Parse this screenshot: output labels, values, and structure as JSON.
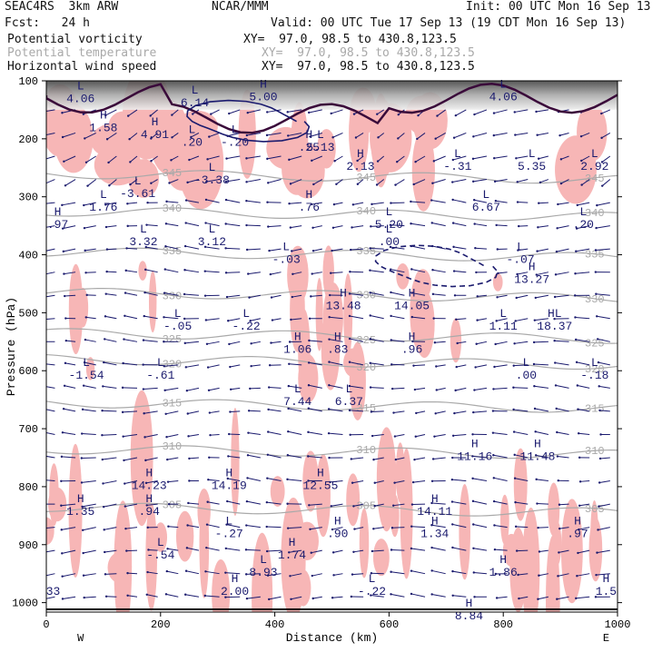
{
  "header": {
    "model": "SEAC4RS  3km ARW",
    "center": "NCAR/MMM",
    "init": "Init: 00 UTC Mon 16 Sep 13",
    "fcst": "Fcst:   24 h",
    "valid": "Valid: 00 UTC Tue 17 Sep 13 (19 CDT Mon 16 Sep 13)",
    "fields": [
      {
        "name": "Potential vorticity",
        "xy": "XY=  97.0, 98.5 to 430.8,123.5",
        "muted": false
      },
      {
        "name": "Potential temperature",
        "xy": "XY=  97.0, 98.5 to 430.8,123.5",
        "muted": true
      },
      {
        "name": "Horizontal wind speed",
        "xy": "XY=  97.0, 98.5 to 430.8,123.5",
        "muted": false
      }
    ]
  },
  "colors": {
    "pv_shade": "#f7b6b6",
    "stratosphere": "#555555",
    "theta_contour": "#a9a9a9",
    "wind_contour": "#1a1a6e",
    "vectors": "#1a1a6e",
    "tropopause": "#3a0a3a"
  },
  "chart_data": {
    "type": "cross-section",
    "xlabel": "Distance (km)",
    "ylabel": "Pressure (hPa)",
    "xlim": [
      0,
      1000
    ],
    "ylim": [
      1000,
      100
    ],
    "xticks": [
      "0",
      "200",
      "400",
      "600",
      "800",
      "1000"
    ],
    "yticks": [
      "100",
      "200",
      "300",
      "400",
      "500",
      "600",
      "700",
      "800",
      "900",
      "1000"
    ],
    "x_end_labels": {
      "left": "W",
      "right": "E"
    },
    "theta_contours": [
      {
        "label": "345",
        "p": 265
      },
      {
        "label": "340",
        "p": 330
      },
      {
        "label": "335",
        "p": 400
      },
      {
        "label": "330",
        "p": 470
      },
      {
        "label": "325",
        "p": 540
      },
      {
        "label": "320",
        "p": 585
      },
      {
        "label": "315",
        "p": 660
      },
      {
        "label": "310",
        "p": 740
      },
      {
        "label": "305",
        "p": 840
      }
    ],
    "extrema": [
      {
        "t": "L",
        "v": "4.06",
        "x": 60,
        "p": 118
      },
      {
        "t": "L",
        "v": "6.14",
        "x": 260,
        "p": 125
      },
      {
        "t": "H",
        "v": "5.00",
        "x": 380,
        "p": 115
      },
      {
        "t": "L",
        "v": "4.06",
        "x": 800,
        "p": 115
      },
      {
        "t": "H",
        "v": "1.58",
        "x": 100,
        "p": 168
      },
      {
        "t": "H",
        "v": "4.91",
        "x": 190,
        "p": 180
      },
      {
        "t": "L",
        "v": ".20",
        "x": 255,
        "p": 193
      },
      {
        "t": "L",
        "v": "-.20",
        "x": 330,
        "p": 193
      },
      {
        "t": "L",
        "v": "5.13",
        "x": 480,
        "p": 202
      },
      {
        "t": "H",
        "v": ".25",
        "x": 460,
        "p": 202
      },
      {
        "t": "H",
        "v": "2.13",
        "x": 550,
        "p": 235
      },
      {
        "t": "L",
        "v": "-.31",
        "x": 720,
        "p": 235
      },
      {
        "t": "L",
        "v": "5.35",
        "x": 850,
        "p": 235
      },
      {
        "t": "L",
        "v": "2.92",
        "x": 960,
        "p": 235
      },
      {
        "t": "L",
        "v": "-3.38",
        "x": 290,
        "p": 258
      },
      {
        "t": "L",
        "v": "-3.61",
        "x": 160,
        "p": 282
      },
      {
        "t": "H",
        "v": ".76",
        "x": 460,
        "p": 305
      },
      {
        "t": "L",
        "v": "1.76",
        "x": 100,
        "p": 305
      },
      {
        "t": "L",
        "v": "6.67",
        "x": 770,
        "p": 305
      },
      {
        "t": "H",
        "v": ".97",
        "x": 20,
        "p": 335
      },
      {
        "t": "L",
        "v": "5.20",
        "x": 600,
        "p": 335
      },
      {
        "t": "L",
        "v": ".20",
        "x": 940,
        "p": 335
      },
      {
        "t": "L",
        "v": "3.32",
        "x": 170,
        "p": 365
      },
      {
        "t": "L",
        "v": "3.12",
        "x": 290,
        "p": 365
      },
      {
        "t": "L",
        "v": ".00",
        "x": 600,
        "p": 365
      },
      {
        "t": "L",
        "v": "-.03",
        "x": 420,
        "p": 395
      },
      {
        "t": "L",
        "v": "-.07",
        "x": 830,
        "p": 395
      },
      {
        "t": "H",
        "v": "13.27",
        "x": 850,
        "p": 430
      },
      {
        "t": "H",
        "v": "13.48",
        "x": 520,
        "p": 475
      },
      {
        "t": "H",
        "v": "14.05",
        "x": 640,
        "p": 475
      },
      {
        "t": "L",
        "v": "-.05",
        "x": 230,
        "p": 510
      },
      {
        "t": "L",
        "v": "-.22",
        "x": 350,
        "p": 510
      },
      {
        "t": "L",
        "v": "1.11",
        "x": 800,
        "p": 510
      },
      {
        "t": "HL",
        "v": "18.37",
        "x": 890,
        "p": 510
      },
      {
        "t": "H",
        "v": "1.06",
        "x": 440,
        "p": 550
      },
      {
        "t": "H",
        "v": ".83",
        "x": 510,
        "p": 550
      },
      {
        "t": "H",
        "v": ".96",
        "x": 640,
        "p": 550
      },
      {
        "t": "L",
        "v": "-1.54",
        "x": 70,
        "p": 595
      },
      {
        "t": "L",
        "v": "-.61",
        "x": 200,
        "p": 595
      },
      {
        "t": "L",
        "v": ".00",
        "x": 840,
        "p": 595
      },
      {
        "t": "L",
        "v": "-.18",
        "x": 960,
        "p": 595
      },
      {
        "t": "L",
        "v": "7.44",
        "x": 440,
        "p": 640
      },
      {
        "t": "L",
        "v": "6.37",
        "x": 530,
        "p": 640
      },
      {
        "t": "H",
        "v": "11.16",
        "x": 750,
        "p": 735
      },
      {
        "t": "H",
        "v": "11.48",
        "x": 860,
        "p": 735
      },
      {
        "t": "H",
        "v": "14.23",
        "x": 180,
        "p": 785
      },
      {
        "t": "H",
        "v": "14.19",
        "x": 320,
        "p": 785
      },
      {
        "t": "H",
        "v": "12.55",
        "x": 480,
        "p": 785
      },
      {
        "t": "H",
        "v": "1.35",
        "x": 60,
        "p": 830
      },
      {
        "t": "H",
        "v": ".94",
        "x": 180,
        "p": 830
      },
      {
        "t": "H",
        "v": "14.11",
        "x": 680,
        "p": 830
      },
      {
        "t": "L",
        "v": "-.27",
        "x": 320,
        "p": 868
      },
      {
        "t": "H",
        "v": ".90",
        "x": 510,
        "p": 868
      },
      {
        "t": "H",
        "v": "1.34",
        "x": 680,
        "p": 868
      },
      {
        "t": "H",
        "v": ".97",
        "x": 930,
        "p": 868
      },
      {
        "t": "L",
        "v": "-.54",
        "x": 200,
        "p": 905
      },
      {
        "t": "H",
        "v": "1.74",
        "x": 430,
        "p": 905
      },
      {
        "t": "L",
        "v": "8.93",
        "x": 380,
        "p": 935
      },
      {
        "t": "H",
        "v": "1.86",
        "x": 800,
        "p": 935
      },
      {
        "t": "H",
        "v": "2.00",
        "x": 330,
        "p": 968
      },
      {
        "t": "L",
        "v": "-.22",
        "x": 570,
        "p": 968
      },
      {
        "t": "H",
        "v": "1.5",
        "x": 980,
        "p": 968
      },
      {
        "t": "H",
        "v": "8.84",
        "x": 740,
        "p": 1010
      },
      {
        "t": "",
        "v": "33",
        "x": 12,
        "p": 968
      }
    ]
  }
}
